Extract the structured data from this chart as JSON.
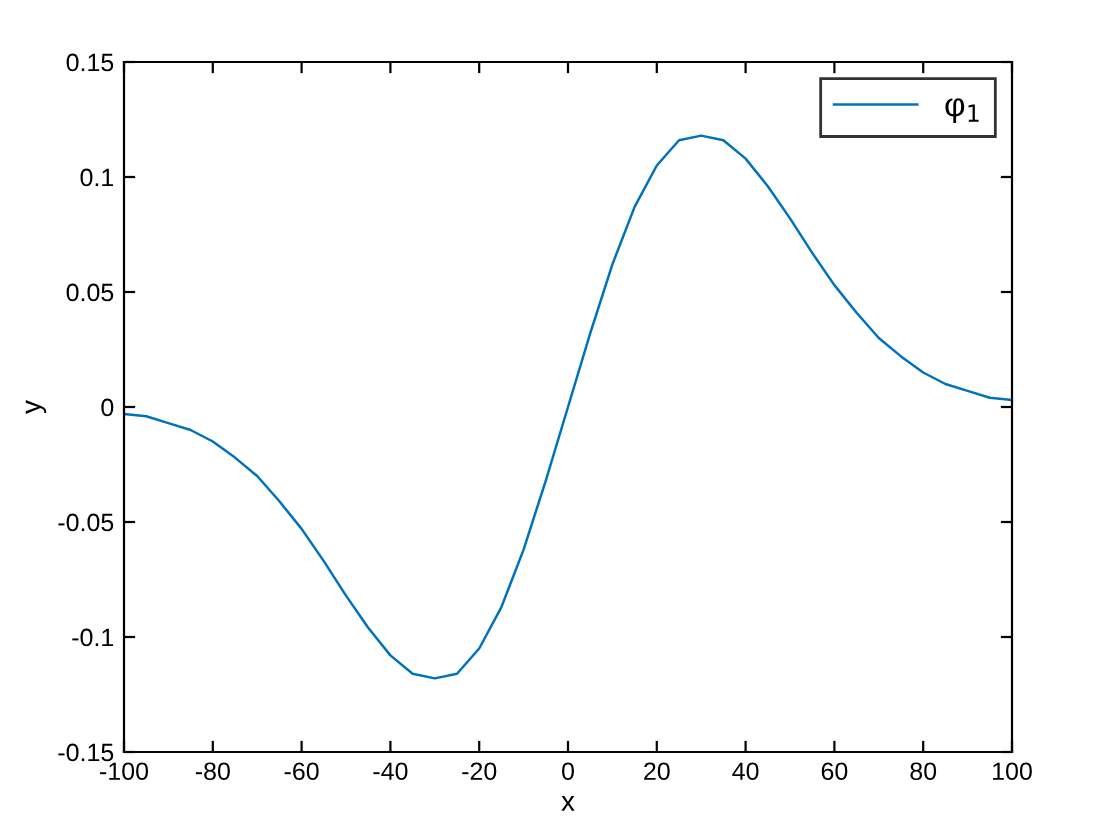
{
  "chart_data": {
    "type": "line",
    "xlabel": "x",
    "ylabel": "y",
    "x": [
      -100,
      -95,
      -90,
      -85,
      -80,
      -75,
      -70,
      -65,
      -60,
      -55,
      -50,
      -45,
      -40,
      -35,
      -30,
      -25,
      -20,
      -15,
      -10,
      -5,
      0,
      5,
      10,
      15,
      20,
      25,
      30,
      35,
      40,
      45,
      50,
      55,
      60,
      65,
      70,
      75,
      80,
      85,
      90,
      95,
      100
    ],
    "series": [
      {
        "name": "φ$_{1}$",
        "color": "#0072bd",
        "values": [
          -0.003,
          -0.004,
          -0.007,
          -0.01,
          -0.015,
          -0.022,
          -0.03,
          -0.041,
          -0.053,
          -0.067,
          -0.082,
          -0.096,
          -0.108,
          -0.116,
          -0.118,
          -0.116,
          -0.105,
          -0.087,
          -0.062,
          -0.032,
          0,
          0.032,
          0.062,
          0.087,
          0.105,
          0.116,
          0.118,
          0.116,
          0.108,
          0.096,
          0.082,
          0.067,
          0.053,
          0.041,
          0.03,
          0.022,
          0.015,
          0.01,
          0.007,
          0.004,
          0.003
        ]
      }
    ],
    "xlim": [
      -100,
      100
    ],
    "xticks": [
      -100,
      -80,
      -60,
      -40,
      -20,
      0,
      20,
      40,
      60,
      80,
      100
    ],
    "ylim": [
      -0.15,
      0.15
    ],
    "yticks": [
      -0.15,
      -0.1,
      -0.05,
      0,
      0.05,
      0.1,
      0.15
    ],
    "grid": false,
    "legend": "top right",
    "marker": "none",
    "line_style": "solid"
  }
}
